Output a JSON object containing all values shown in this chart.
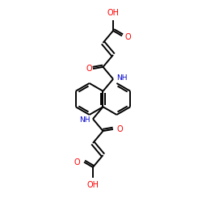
{
  "bg_color": "#ffffff",
  "bond_color": "#000000",
  "o_color": "#ff0000",
  "n_color": "#0000cc",
  "lw": 1.4,
  "figsize": [
    2.5,
    2.5
  ],
  "dpi": 100,
  "xlim": [
    0,
    10
  ],
  "ylim": [
    0,
    10
  ]
}
